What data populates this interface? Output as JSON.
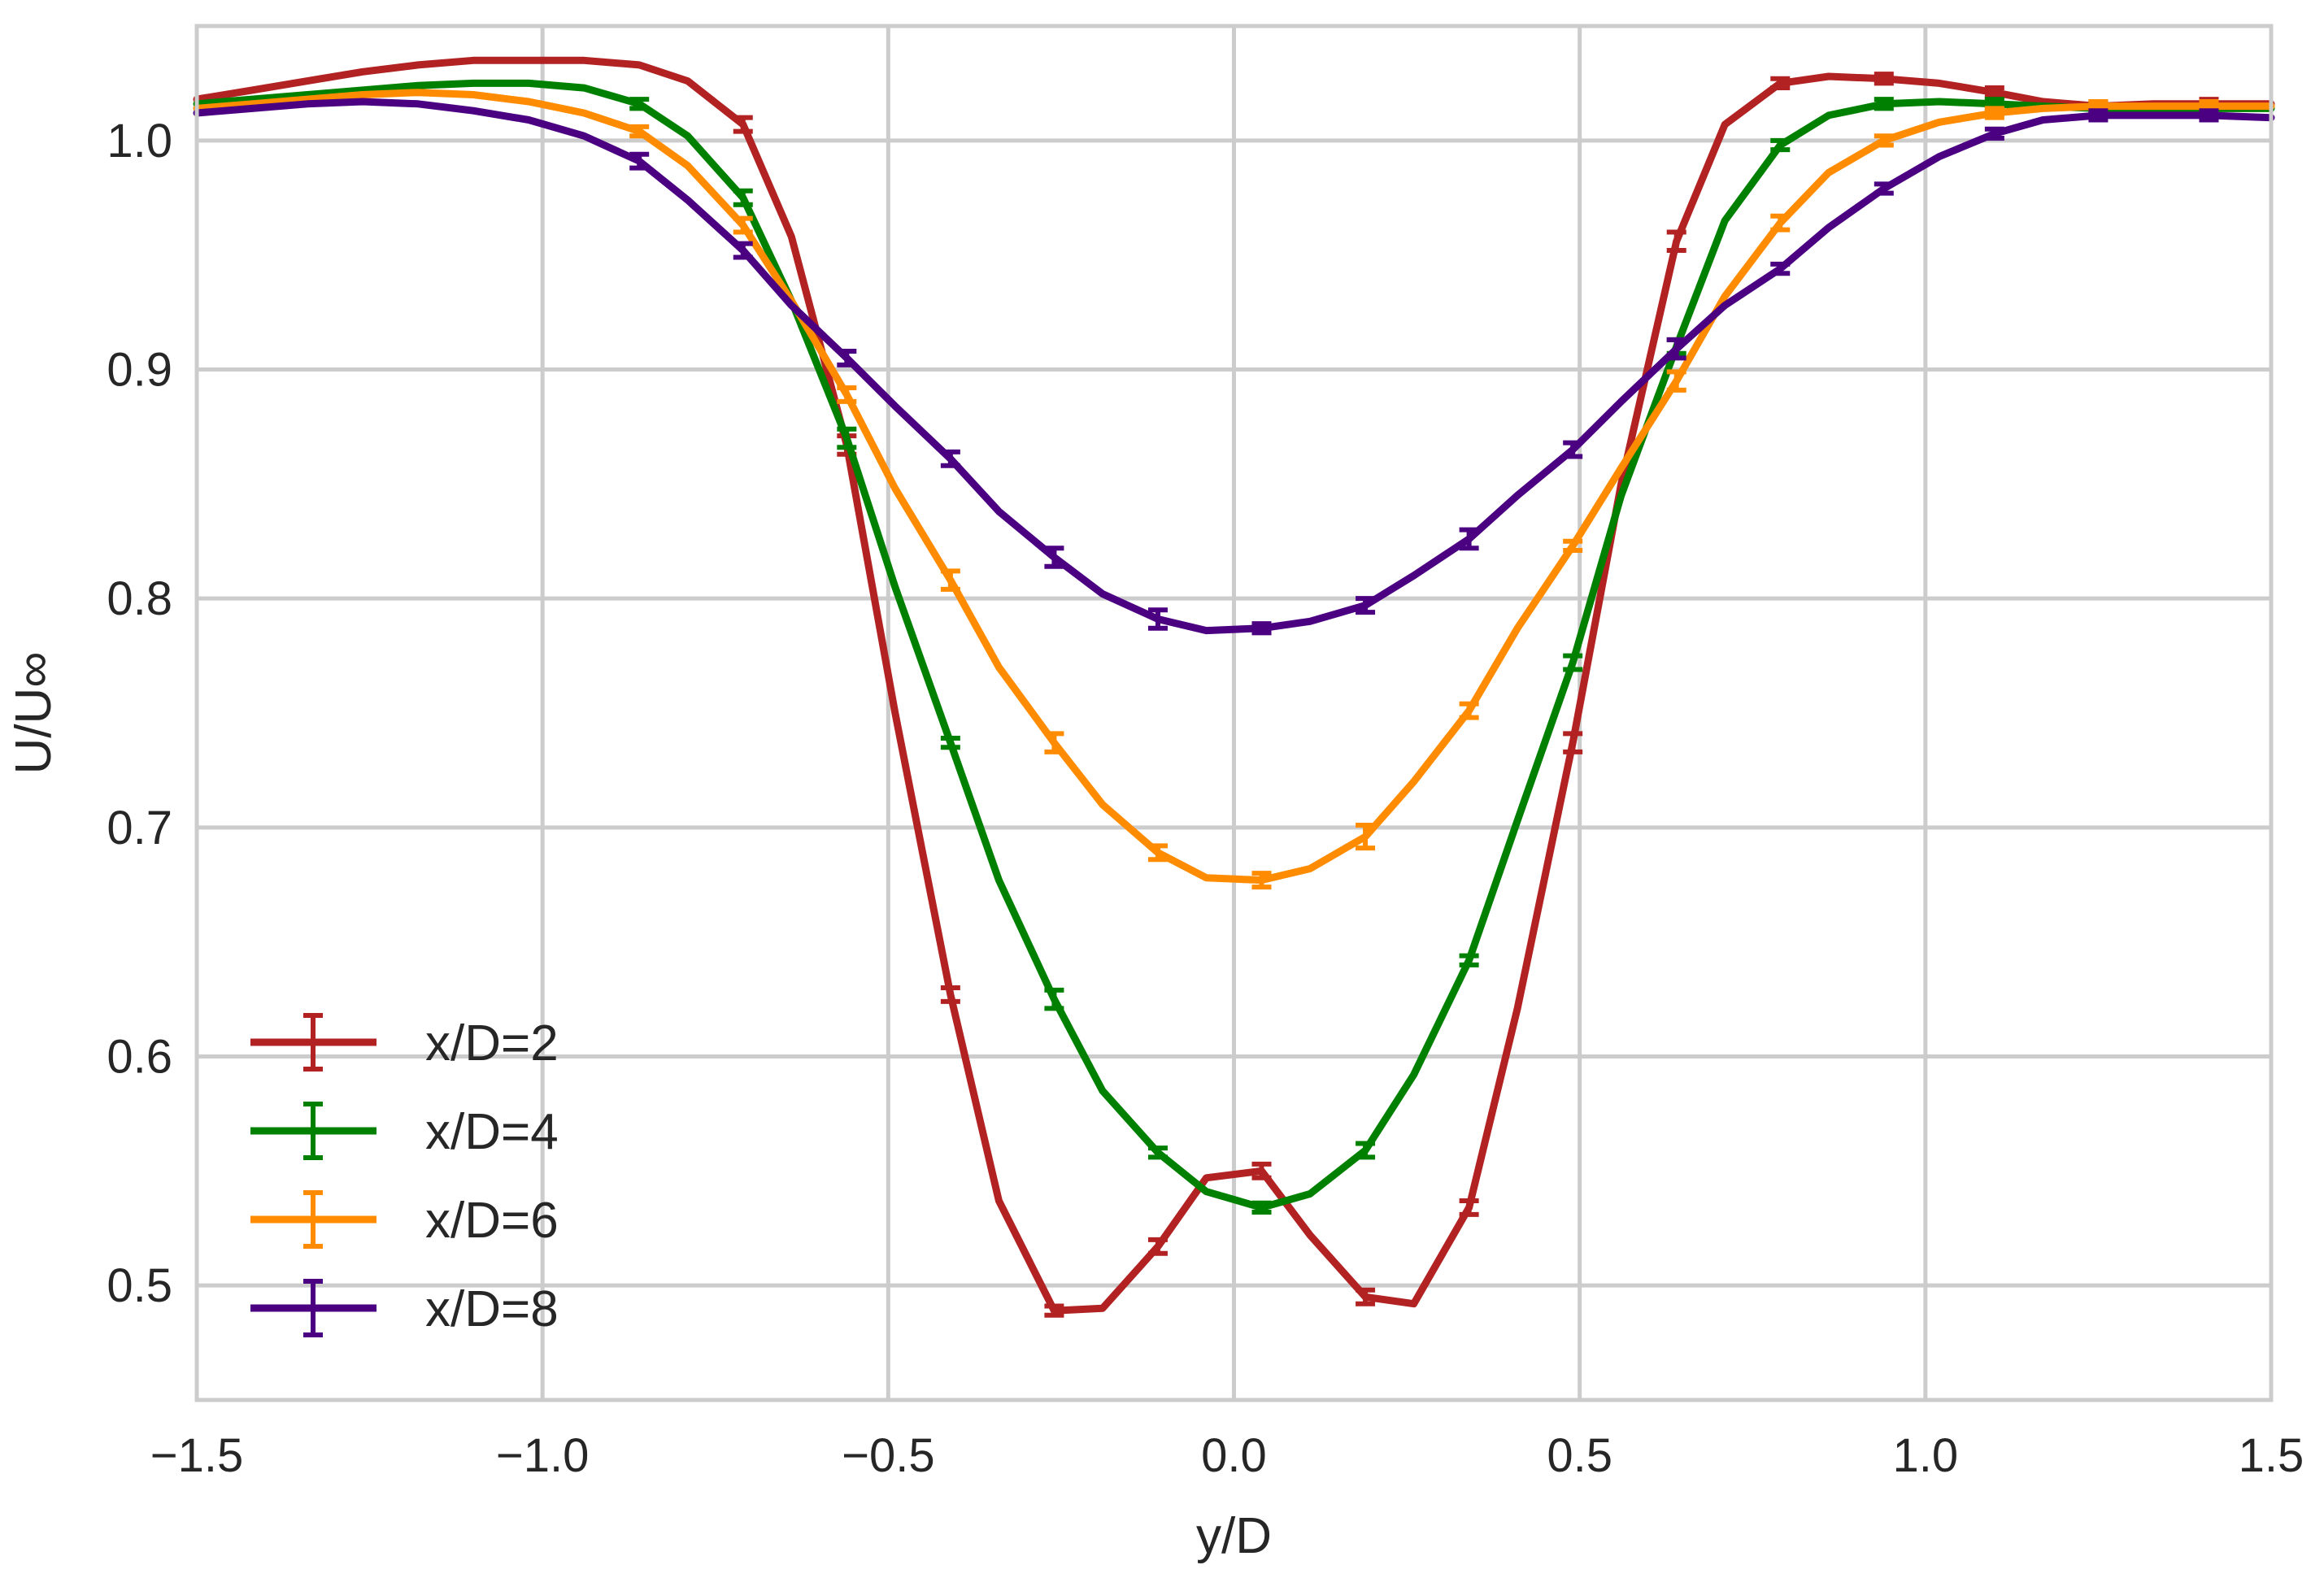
{
  "chart_data": {
    "type": "line",
    "title": "",
    "xlabel": "y/D",
    "ylabel": "U/U∞",
    "xlim": [
      -1.5,
      1.5
    ],
    "ylim": [
      0.45,
      1.05
    ],
    "grid": true,
    "legend_position": "lower-left",
    "x_ticks": [
      -1.5,
      -1.0,
      -0.5,
      0.0,
      0.5,
      1.0,
      1.5
    ],
    "x_tick_labels": [
      "−1.5",
      "−1.0",
      "−0.5",
      "0.0",
      "0.5",
      "1.0",
      "1.5"
    ],
    "y_ticks": [
      0.5,
      0.6,
      0.7,
      0.8,
      0.9,
      1.0
    ],
    "y_tick_labels": [
      "0.5",
      "0.6",
      "0.7",
      "0.8",
      "0.9",
      "1.0"
    ],
    "series": [
      {
        "name": "x/D=2",
        "color": "#b22222",
        "x": [
          -1.5,
          -1.42,
          -1.34,
          -1.26,
          -1.18,
          -1.1,
          -1.02,
          -0.94,
          -0.86,
          -0.79,
          -0.71,
          -0.64,
          -0.56,
          -0.49,
          -0.41,
          -0.34,
          -0.26,
          -0.19,
          -0.11,
          -0.04,
          0.04,
          0.11,
          0.19,
          0.26,
          0.34,
          0.41,
          0.49,
          0.56,
          0.64,
          0.71,
          0.79,
          0.86,
          0.94,
          1.02,
          1.1,
          1.17,
          1.25,
          1.33,
          1.41,
          1.5
        ],
        "y": [
          1.018,
          1.022,
          1.026,
          1.03,
          1.033,
          1.035,
          1.035,
          1.035,
          1.033,
          1.026,
          1.007,
          0.958,
          0.867,
          0.75,
          0.627,
          0.537,
          0.489,
          0.49,
          0.517,
          0.547,
          0.55,
          0.522,
          0.495,
          0.492,
          0.534,
          0.621,
          0.737,
          0.85,
          0.956,
          1.007,
          1.025,
          1.028,
          1.027,
          1.025,
          1.021,
          1.017,
          1.015,
          1.016,
          1.016,
          1.016
        ],
        "errorbar_x": [
          -0.71,
          -0.56,
          -0.41,
          -0.26,
          -0.11,
          0.04,
          0.19,
          0.34,
          0.49,
          0.64,
          0.79,
          0.94,
          1.1,
          1.25,
          1.41
        ],
        "errorbar_y": [
          1.007,
          0.867,
          0.627,
          0.489,
          0.517,
          0.55,
          0.495,
          0.534,
          0.737,
          0.956,
          1.025,
          1.027,
          1.021,
          1.015,
          1.016
        ],
        "errorbar_err": [
          0.003,
          0.004,
          0.003,
          0.002,
          0.003,
          0.003,
          0.003,
          0.003,
          0.004,
          0.004,
          0.002,
          0.002,
          0.002,
          0.002,
          0.002
        ]
      },
      {
        "name": "x/D=4",
        "color": "#008000",
        "x": [
          -1.5,
          -1.42,
          -1.34,
          -1.26,
          -1.18,
          -1.1,
          -1.02,
          -0.94,
          -0.86,
          -0.79,
          -0.71,
          -0.64,
          -0.56,
          -0.49,
          -0.41,
          -0.34,
          -0.26,
          -0.19,
          -0.11,
          -0.04,
          0.04,
          0.11,
          0.19,
          0.26,
          0.34,
          0.41,
          0.49,
          0.56,
          0.64,
          0.71,
          0.79,
          0.86,
          0.94,
          1.02,
          1.1,
          1.17,
          1.25,
          1.33,
          1.41,
          1.5
        ],
        "y": [
          1.016,
          1.018,
          1.02,
          1.022,
          1.024,
          1.025,
          1.025,
          1.023,
          1.016,
          1.002,
          0.975,
          0.93,
          0.87,
          0.805,
          0.737,
          0.677,
          0.625,
          0.585,
          0.558,
          0.541,
          0.534,
          0.54,
          0.559,
          0.592,
          0.642,
          0.703,
          0.772,
          0.845,
          0.91,
          0.965,
          0.998,
          1.011,
          1.016,
          1.017,
          1.016,
          1.015,
          1.014,
          1.014,
          1.014,
          1.014
        ],
        "errorbar_x": [
          -0.86,
          -0.71,
          -0.56,
          -0.41,
          -0.26,
          -0.11,
          0.04,
          0.19,
          0.34,
          0.49,
          0.64,
          0.79,
          0.94,
          1.1,
          1.25,
          1.41
        ],
        "errorbar_y": [
          1.016,
          0.975,
          0.87,
          0.737,
          0.625,
          0.558,
          0.534,
          0.559,
          0.642,
          0.772,
          0.91,
          0.998,
          1.016,
          1.016,
          1.014,
          1.014
        ],
        "errorbar_err": [
          0.002,
          0.003,
          0.004,
          0.002,
          0.004,
          0.002,
          0.002,
          0.003,
          0.002,
          0.003,
          0.003,
          0.002,
          0.002,
          0.002,
          0.002,
          0.002
        ]
      },
      {
        "name": "x/D=6",
        "color": "#ff8c00",
        "x": [
          -1.5,
          -1.42,
          -1.34,
          -1.26,
          -1.18,
          -1.1,
          -1.02,
          -0.94,
          -0.86,
          -0.79,
          -0.71,
          -0.64,
          -0.56,
          -0.49,
          -0.41,
          -0.34,
          -0.26,
          -0.19,
          -0.11,
          -0.04,
          0.04,
          0.11,
          0.19,
          0.26,
          0.34,
          0.41,
          0.49,
          0.56,
          0.64,
          0.71,
          0.79,
          0.86,
          0.94,
          1.02,
          1.1,
          1.17,
          1.25,
          1.33,
          1.41,
          1.5
        ],
        "y": [
          1.014,
          1.016,
          1.018,
          1.02,
          1.021,
          1.02,
          1.017,
          1.012,
          1.004,
          0.989,
          0.963,
          0.93,
          0.889,
          0.848,
          0.808,
          0.77,
          0.737,
          0.71,
          0.689,
          0.678,
          0.677,
          0.682,
          0.696,
          0.72,
          0.751,
          0.787,
          0.823,
          0.857,
          0.895,
          0.932,
          0.964,
          0.986,
          1.0,
          1.008,
          1.012,
          1.014,
          1.015,
          1.015,
          1.015,
          1.015
        ],
        "errorbar_x": [
          -0.86,
          -0.71,
          -0.56,
          -0.41,
          -0.26,
          -0.11,
          0.04,
          0.19,
          0.34,
          0.49,
          0.64,
          0.79,
          0.94,
          1.1,
          1.25,
          1.41
        ],
        "errorbar_y": [
          1.004,
          0.963,
          0.889,
          0.808,
          0.737,
          0.689,
          0.677,
          0.696,
          0.751,
          0.823,
          0.895,
          0.964,
          1.0,
          1.012,
          1.015,
          1.015
        ],
        "errorbar_err": [
          0.002,
          0.003,
          0.003,
          0.004,
          0.004,
          0.003,
          0.003,
          0.005,
          0.003,
          0.002,
          0.004,
          0.003,
          0.002,
          0.002,
          0.002,
          0.002
        ]
      },
      {
        "name": "x/D=8",
        "color": "#4b0082",
        "x": [
          -1.5,
          -1.42,
          -1.34,
          -1.26,
          -1.18,
          -1.1,
          -1.02,
          -0.94,
          -0.86,
          -0.79,
          -0.71,
          -0.64,
          -0.56,
          -0.49,
          -0.41,
          -0.34,
          -0.26,
          -0.19,
          -0.11,
          -0.04,
          0.04,
          0.11,
          0.19,
          0.26,
          0.34,
          0.41,
          0.49,
          0.56,
          0.64,
          0.71,
          0.79,
          0.86,
          0.94,
          1.02,
          1.1,
          1.17,
          1.25,
          1.33,
          1.41,
          1.5
        ],
        "y": [
          1.012,
          1.014,
          1.016,
          1.017,
          1.016,
          1.013,
          1.009,
          1.002,
          0.991,
          0.974,
          0.952,
          0.928,
          0.905,
          0.884,
          0.861,
          0.838,
          0.818,
          0.802,
          0.791,
          0.786,
          0.787,
          0.79,
          0.797,
          0.81,
          0.826,
          0.845,
          0.865,
          0.886,
          0.909,
          0.928,
          0.944,
          0.962,
          0.979,
          0.993,
          1.003,
          1.009,
          1.011,
          1.011,
          1.011,
          1.01
        ],
        "errorbar_x": [
          -0.86,
          -0.71,
          -0.56,
          -0.41,
          -0.26,
          -0.11,
          0.04,
          0.19,
          0.34,
          0.49,
          0.64,
          0.79,
          0.94,
          1.1,
          1.25,
          1.41
        ],
        "errorbar_y": [
          0.991,
          0.952,
          0.905,
          0.861,
          0.818,
          0.791,
          0.787,
          0.797,
          0.826,
          0.865,
          0.909,
          0.944,
          0.979,
          1.003,
          1.011,
          1.011
        ],
        "errorbar_err": [
          0.003,
          0.003,
          0.003,
          0.003,
          0.004,
          0.004,
          0.002,
          0.003,
          0.004,
          0.003,
          0.004,
          0.002,
          0.002,
          0.002,
          0.002,
          0.002
        ]
      }
    ]
  }
}
